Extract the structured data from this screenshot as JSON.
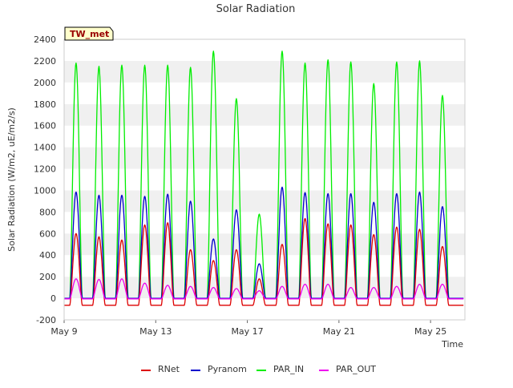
{
  "chart_data": {
    "type": "line",
    "title": "Solar Radiation",
    "xlabel": "Time",
    "ylabel": "Solar Radiation (W/m2, uE/m2/s)",
    "station_label": "TW_met",
    "ylim": [
      -200,
      2400
    ],
    "yticks": [
      -200,
      0,
      200,
      400,
      600,
      800,
      1000,
      1200,
      1400,
      1600,
      1800,
      2000,
      2200,
      2400
    ],
    "xlim": [
      "2024-05-09",
      "2024-05-26T12:00"
    ],
    "xtick_labels": [
      "May 9",
      "May 13",
      "May 17",
      "May 21",
      "May 25"
    ],
    "xtick_days": [
      9,
      13,
      17,
      21,
      25
    ],
    "grid": "horizontal bands",
    "legend_position": "bottom",
    "days": [
      "May 9",
      "May 10",
      "May 11",
      "May 12",
      "May 13",
      "May 14",
      "May 15",
      "May 16",
      "May 17",
      "May 18",
      "May 19",
      "May 20",
      "May 21",
      "May 22",
      "May 23",
      "May 24",
      "May 25",
      "May 26"
    ],
    "series": [
      {
        "name": "RNet",
        "color": "#dd0000",
        "night_value": -65,
        "daily_peak": [
          600,
          570,
          540,
          680,
          700,
          450,
          350,
          450,
          180,
          500,
          740,
          690,
          680,
          590,
          660,
          640,
          480,
          0
        ]
      },
      {
        "name": "Pyranom",
        "color": "#0000cc",
        "night_value": 0,
        "daily_peak": [
          985,
          955,
          955,
          945,
          965,
          900,
          550,
          820,
          320,
          1030,
          980,
          970,
          970,
          890,
          970,
          985,
          850,
          0
        ]
      },
      {
        "name": "PAR_IN",
        "color": "#00ee00",
        "night_value": 0,
        "daily_peak": [
          2180,
          2150,
          2160,
          2160,
          2160,
          2140,
          2290,
          1850,
          780,
          2290,
          2180,
          2210,
          2190,
          1990,
          2190,
          2200,
          1880,
          0
        ]
      },
      {
        "name": "PAR_OUT",
        "color": "#ee00ee",
        "night_value": -5,
        "daily_peak": [
          180,
          175,
          180,
          140,
          120,
          110,
          100,
          90,
          70,
          110,
          130,
          130,
          100,
          100,
          110,
          130,
          130,
          0
        ]
      }
    ]
  }
}
